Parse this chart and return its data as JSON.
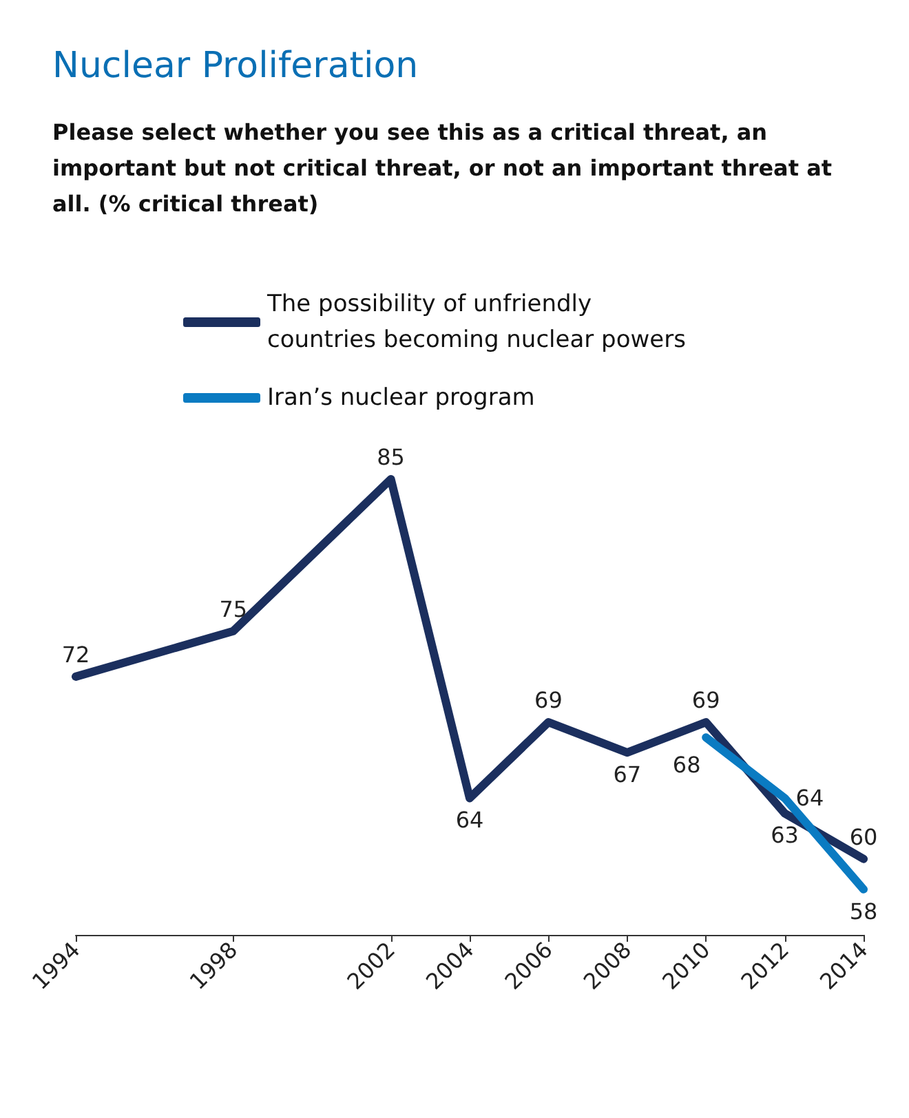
{
  "chart_data": {
    "type": "line",
    "title": "Nuclear Proliferation",
    "subtitle": "Please select whether you see this as a critical threat, an important but not critical threat, or not an important threat at all. (% critical threat)",
    "x": [
      1994,
      1998,
      2002,
      2004,
      2006,
      2008,
      2010,
      2012,
      2014
    ],
    "series": [
      {
        "name": "The possibility of unfriendly countries becoming nuclear powers",
        "color": "#1b2f5e",
        "values": [
          72,
          75,
          85,
          64,
          69,
          67,
          69,
          63,
          60
        ]
      },
      {
        "name": "Iran’s nuclear program",
        "color": "#0a7bc2",
        "x": [
          2010,
          2012,
          2014
        ],
        "values": [
          68,
          64,
          58
        ]
      }
    ],
    "xlim": [
      1994,
      2014
    ],
    "xticks": [
      1994,
      1998,
      2002,
      2004,
      2006,
      2008,
      2010,
      2012,
      2014
    ],
    "data_labels": true,
    "legend": "top",
    "grid": false,
    "marker": "none",
    "line_style": "solid",
    "tick_labels": "x"
  }
}
